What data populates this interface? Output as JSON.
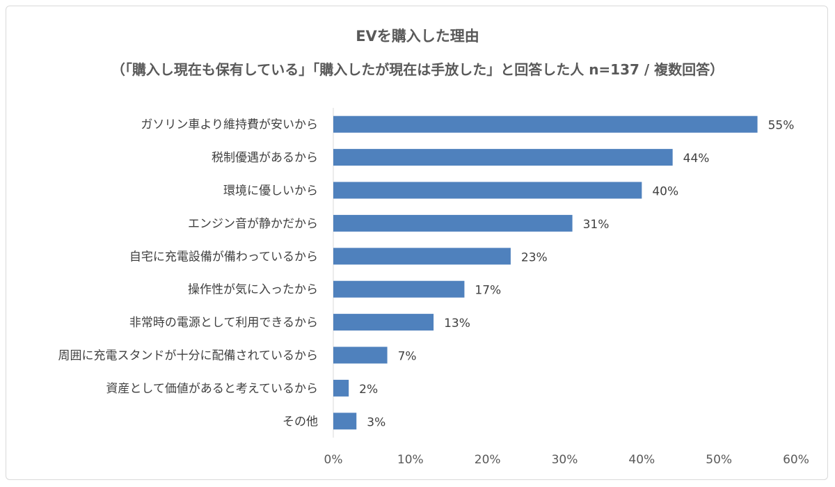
{
  "chart_data": {
    "type": "bar",
    "orientation": "horizontal",
    "title": "EVを購入した理由",
    "subtitle": "（「購入し現在も保有している」「購入したが現在は手放した」と回答した人 n=137 / 複数回答）",
    "categories": [
      "ガソリン車より維持費が安いから",
      "税制優遇があるから",
      "環境に優しいから",
      "エンジン音が静かだから",
      "自宅に充電設備が備わっているから",
      "操作性が気に入ったから",
      "非常時の電源として利用できるから",
      "周囲に充電スタンドが十分に配備されているから",
      "資産として価値があると考えているから",
      "その他"
    ],
    "values": [
      55,
      44,
      40,
      31,
      23,
      17,
      13,
      7,
      2,
      3
    ],
    "value_labels": [
      "55%",
      "44%",
      "40%",
      "31%",
      "23%",
      "17%",
      "13%",
      "7%",
      "2%",
      "3%"
    ],
    "xlim": [
      0,
      60
    ],
    "x_ticks": [
      "0%",
      "10%",
      "20%",
      "30%",
      "40%",
      "50%",
      "60%"
    ],
    "bar_color": "#4f81bd",
    "grid": false,
    "legend": "none"
  }
}
